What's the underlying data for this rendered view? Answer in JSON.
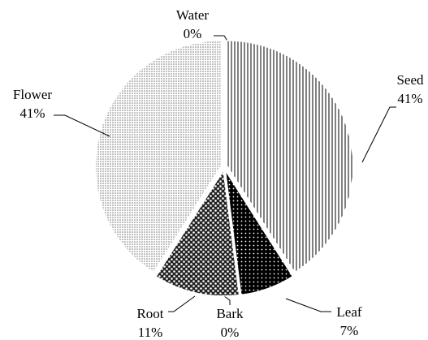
{
  "chart_data": {
    "type": "pie",
    "categories": [
      "Water",
      "Seed",
      "Leaf",
      "Bark",
      "Root",
      "Flower"
    ],
    "values": [
      0,
      41,
      7,
      0,
      11,
      41
    ],
    "value_labels": [
      "0%",
      "41%",
      "7%",
      "0%",
      "11%",
      "41%"
    ],
    "patterns": [
      "white",
      "vertical-lines",
      "dark-dots",
      "white",
      "checker-dots",
      "fine-dots"
    ]
  }
}
